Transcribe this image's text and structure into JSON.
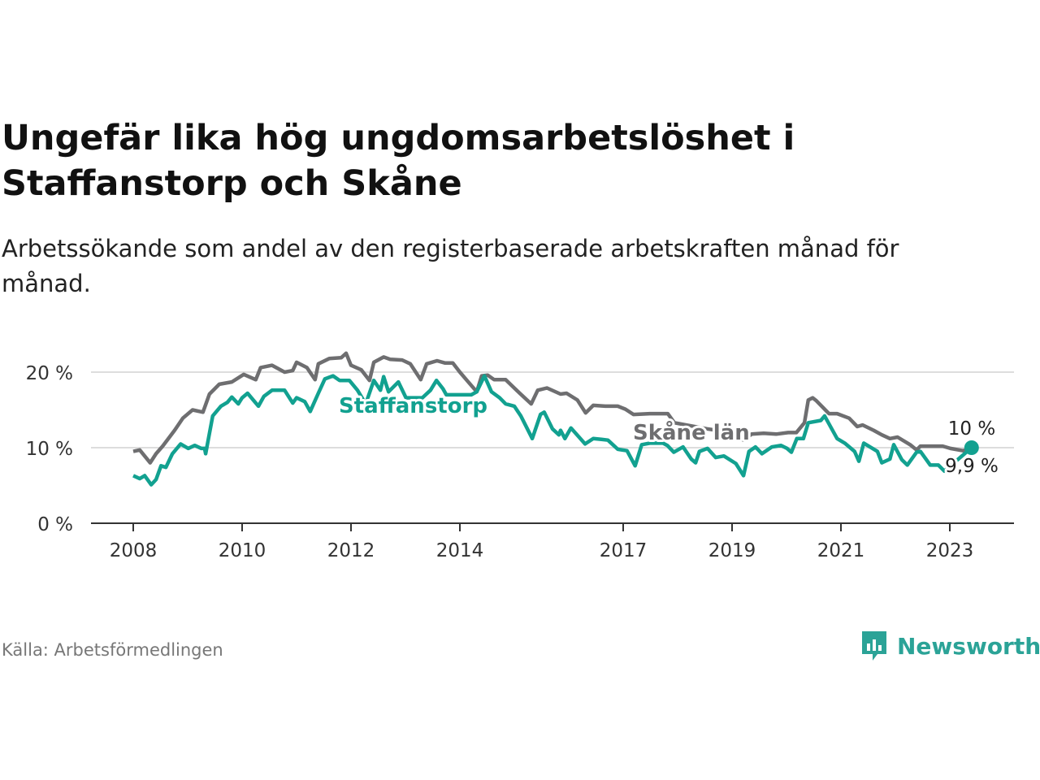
{
  "title": "Ungefär lika hög ungdomsarbetslöshet i Staffanstorp och Skåne",
  "subtitle": "Arbetssökande som andel av den registerbaserade arbetskraften månad för månad.",
  "source": "Källa: Arbetsförmedlingen",
  "brand": "Newsworthy",
  "colors": {
    "staffanstorp": "#12a190",
    "skane": "#6e6e70",
    "grid": "#dddddd",
    "axis": "#333333"
  },
  "chart_data": {
    "type": "line",
    "title": "Ungefär lika hög ungdomsarbetslöshet i Staffanstorp och Skåne",
    "xlabel": "",
    "ylabel": "",
    "xlim": [
      2008,
      2023.5
    ],
    "ylim": [
      0,
      20
    ],
    "y_ticks": [
      {
        "v": 0,
        "label": "0 %"
      },
      {
        "v": 10,
        "label": "10 %"
      },
      {
        "v": 20,
        "label": "20 %"
      }
    ],
    "x_ticks": [
      {
        "v": 2008,
        "label": "2008"
      },
      {
        "v": 2010,
        "label": "2010"
      },
      {
        "v": 2012,
        "label": "2012"
      },
      {
        "v": 2014,
        "label": "2014"
      },
      {
        "v": 2017,
        "label": "2017"
      },
      {
        "v": 2019,
        "label": "2019"
      },
      {
        "v": 2021,
        "label": "2021"
      },
      {
        "v": 2023,
        "label": "2023"
      }
    ],
    "grid": true,
    "series": [
      {
        "name": "Skåne län",
        "label": "Skåne län",
        "end_label": "9,9 %",
        "x": [
          2008.0,
          2008.12,
          2008.31,
          2008.42,
          2008.54,
          2008.76,
          2008.91,
          2009.09,
          2009.28,
          2009.4,
          2009.58,
          2009.81,
          2010.03,
          2010.25,
          2010.34,
          2010.55,
          2010.78,
          2010.93,
          2011.0,
          2011.19,
          2011.34,
          2011.4,
          2011.6,
          2011.82,
          2011.91,
          2012.0,
          2012.19,
          2012.34,
          2012.42,
          2012.6,
          2012.72,
          2012.94,
          2013.09,
          2013.28,
          2013.39,
          2013.58,
          2013.73,
          2013.87,
          2014.0,
          2014.13,
          2014.31,
          2014.4,
          2014.51,
          2014.63,
          2014.84,
          2015.1,
          2015.31,
          2015.43,
          2015.6,
          2015.85,
          2015.96,
          2016.16,
          2016.31,
          2016.45,
          2016.67,
          2016.9,
          2017.04,
          2017.19,
          2017.49,
          2017.82,
          2017.94,
          2018.16,
          2018.54,
          2018.99,
          2019.21,
          2019.36,
          2019.58,
          2019.81,
          2020.03,
          2020.18,
          2020.33,
          2020.4,
          2020.48,
          2020.55,
          2020.78,
          2020.93,
          2021.15,
          2021.3,
          2021.4,
          2021.6,
          2021.75,
          2021.9,
          2022.04,
          2022.27,
          2022.39,
          2022.46,
          2022.72,
          2022.87,
          2023.01,
          2023.24,
          2023.4
        ],
        "y": [
          9.5,
          9.7,
          8.0,
          9.2,
          10.2,
          12.3,
          13.9,
          15.0,
          14.7,
          17.1,
          18.4,
          18.7,
          19.7,
          19.0,
          20.6,
          20.9,
          20.0,
          20.2,
          21.3,
          20.6,
          19.0,
          21.1,
          21.8,
          21.9,
          22.5,
          20.9,
          20.3,
          18.9,
          21.3,
          22.0,
          21.7,
          21.6,
          21.1,
          19.0,
          21.1,
          21.5,
          21.2,
          21.2,
          20.0,
          18.9,
          17.4,
          19.5,
          19.6,
          19.0,
          19.0,
          17.2,
          15.8,
          17.6,
          17.9,
          17.1,
          17.2,
          16.3,
          14.6,
          15.6,
          15.5,
          15.5,
          15.1,
          14.4,
          14.5,
          14.5,
          13.3,
          13.0,
          12.5,
          12.0,
          11.0,
          11.8,
          11.9,
          11.8,
          12.0,
          12.0,
          13.3,
          16.3,
          16.6,
          16.2,
          14.5,
          14.5,
          13.9,
          12.8,
          13.0,
          12.3,
          11.7,
          11.2,
          11.4,
          10.4,
          9.7,
          10.2,
          10.2,
          10.2,
          9.9,
          9.6,
          9.9
        ]
      },
      {
        "name": "Staffanstorp",
        "label": "Staffanstorp",
        "end_label": "10 %",
        "x": [
          2008.0,
          2008.12,
          2008.21,
          2008.33,
          2008.42,
          2008.51,
          2008.6,
          2008.72,
          2008.87,
          2009.01,
          2009.13,
          2009.25,
          2009.31,
          2009.33,
          2009.46,
          2009.61,
          2009.73,
          2009.81,
          2009.93,
          2010.0,
          2010.1,
          2010.3,
          2010.4,
          2010.55,
          2010.78,
          2010.93,
          2011.0,
          2011.15,
          2011.25,
          2011.4,
          2011.52,
          2011.67,
          2011.79,
          2011.97,
          2012.12,
          2012.27,
          2012.42,
          2012.54,
          2012.6,
          2012.69,
          2012.87,
          2013.01,
          2013.31,
          2013.46,
          2013.57,
          2013.69,
          2013.75,
          2014.21,
          2014.31,
          2014.45,
          2014.58,
          2014.73,
          2014.84,
          2015.0,
          2015.12,
          2015.33,
          2015.48,
          2015.55,
          2015.7,
          2015.82,
          2015.85,
          2015.93,
          2016.04,
          2016.19,
          2016.3,
          2016.45,
          2016.6,
          2016.72,
          2016.9,
          2017.07,
          2017.22,
          2017.34,
          2017.49,
          2017.73,
          2017.81,
          2017.93,
          2018.1,
          2018.25,
          2018.33,
          2018.4,
          2018.55,
          2018.7,
          2018.85,
          2019.07,
          2019.21,
          2019.31,
          2019.43,
          2019.55,
          2019.73,
          2019.9,
          2020.01,
          2020.09,
          2020.19,
          2020.31,
          2020.4,
          2020.63,
          2020.7,
          2020.93,
          2021.07,
          2021.25,
          2021.33,
          2021.42,
          2021.67,
          2021.75,
          2021.9,
          2021.97,
          2022.12,
          2022.22,
          2022.39,
          2022.46,
          2022.64,
          2022.79,
          2022.9,
          2023.4
        ],
        "y": [
          6.3,
          5.9,
          6.3,
          5.1,
          5.8,
          7.6,
          7.4,
          9.2,
          10.5,
          9.9,
          10.3,
          9.9,
          9.9,
          9.2,
          14.2,
          15.5,
          16.0,
          16.7,
          15.8,
          16.6,
          17.2,
          15.5,
          16.8,
          17.6,
          17.6,
          15.9,
          16.6,
          16.1,
          14.8,
          17.2,
          19.1,
          19.5,
          18.9,
          18.9,
          17.6,
          15.8,
          18.9,
          17.6,
          19.4,
          17.4,
          18.7,
          16.6,
          16.6,
          17.6,
          18.9,
          17.8,
          17.0,
          17.0,
          17.4,
          19.5,
          17.4,
          16.6,
          15.8,
          15.5,
          14.2,
          11.2,
          14.4,
          14.7,
          12.5,
          11.7,
          12.3,
          11.2,
          12.6,
          11.4,
          10.5,
          11.2,
          11.1,
          11.0,
          9.8,
          9.6,
          7.6,
          10.4,
          10.6,
          10.6,
          10.3,
          9.4,
          10.1,
          8.5,
          8.0,
          9.5,
          9.9,
          8.7,
          8.9,
          7.9,
          6.3,
          9.5,
          10.1,
          9.2,
          10.1,
          10.3,
          9.9,
          9.4,
          11.2,
          11.2,
          13.3,
          13.6,
          14.2,
          11.2,
          10.6,
          9.5,
          8.2,
          10.6,
          9.5,
          8.0,
          8.5,
          10.4,
          8.4,
          7.7,
          9.4,
          9.5,
          7.7,
          7.7,
          6.9,
          10.0
        ]
      }
    ]
  }
}
